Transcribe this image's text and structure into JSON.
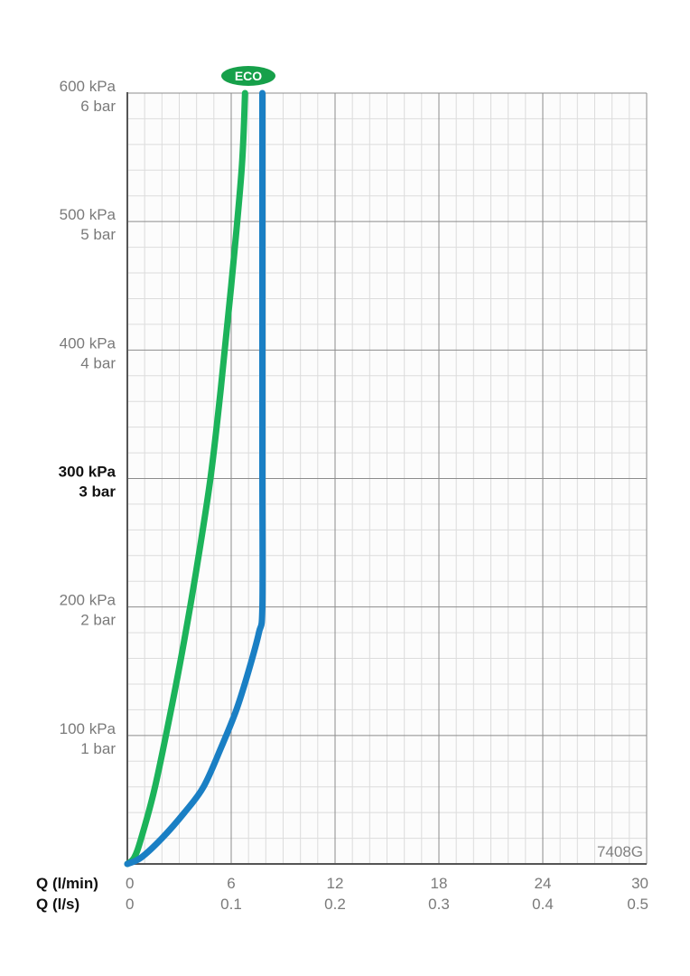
{
  "chart_data": {
    "type": "line",
    "x_axes": [
      {
        "label": "Q (l/min)",
        "ticks": [
          "0",
          "6",
          "12",
          "18",
          "24",
          "30"
        ],
        "range": [
          0,
          30
        ]
      },
      {
        "label": "Q (l/s)",
        "ticks": [
          "0",
          "0.1",
          "0.2",
          "0.3",
          "0.4",
          "0.5"
        ],
        "range": [
          0,
          0.5
        ]
      }
    ],
    "y_axis": {
      "unit": "kPa",
      "range": [
        0,
        600
      ],
      "ticks": [
        {
          "value": 100,
          "kpa": "100 kPa",
          "bar": "1 bar",
          "emphasis": false
        },
        {
          "value": 200,
          "kpa": "200 kPa",
          "bar": "2 bar",
          "emphasis": false
        },
        {
          "value": 300,
          "kpa": "300 kPa",
          "bar": "3 bar",
          "emphasis": true
        },
        {
          "value": 400,
          "kpa": "400 kPa",
          "bar": "4 bar",
          "emphasis": false
        },
        {
          "value": 500,
          "kpa": "500 kPa",
          "bar": "5 bar",
          "emphasis": false
        },
        {
          "value": 600,
          "kpa": "600 kPa",
          "bar": "6 bar",
          "emphasis": false
        }
      ]
    },
    "grid": true,
    "model_code": "7408G",
    "eco_badge": "ECO",
    "series": [
      {
        "color": "#1cb35a",
        "points": [
          [
            0,
            0
          ],
          [
            0.4,
            5
          ],
          [
            0.8,
            20
          ],
          [
            1.6,
            60
          ],
          [
            2.6,
            125
          ],
          [
            3.3,
            175
          ],
          [
            4,
            230
          ],
          [
            4.8,
            300
          ],
          [
            5.4,
            370
          ],
          [
            6,
            450
          ],
          [
            6.6,
            540
          ],
          [
            6.8,
            600
          ]
        ]
      },
      {
        "color": "#1a7fc4",
        "points": [
          [
            0,
            0
          ],
          [
            0.8,
            5
          ],
          [
            2,
            20
          ],
          [
            3.3,
            40
          ],
          [
            4.4,
            60
          ],
          [
            5.4,
            90
          ],
          [
            6.3,
            120
          ],
          [
            7,
            150
          ],
          [
            7.6,
            180
          ],
          [
            7.8,
            200
          ],
          [
            7.8,
            300
          ],
          [
            7.8,
            400
          ],
          [
            7.8,
            500
          ],
          [
            7.8,
            600
          ]
        ]
      }
    ]
  },
  "colors": {
    "grid_major": "#8c8c8c",
    "grid_minor": "#dcdcdc",
    "eco_green": "#16a04a"
  }
}
